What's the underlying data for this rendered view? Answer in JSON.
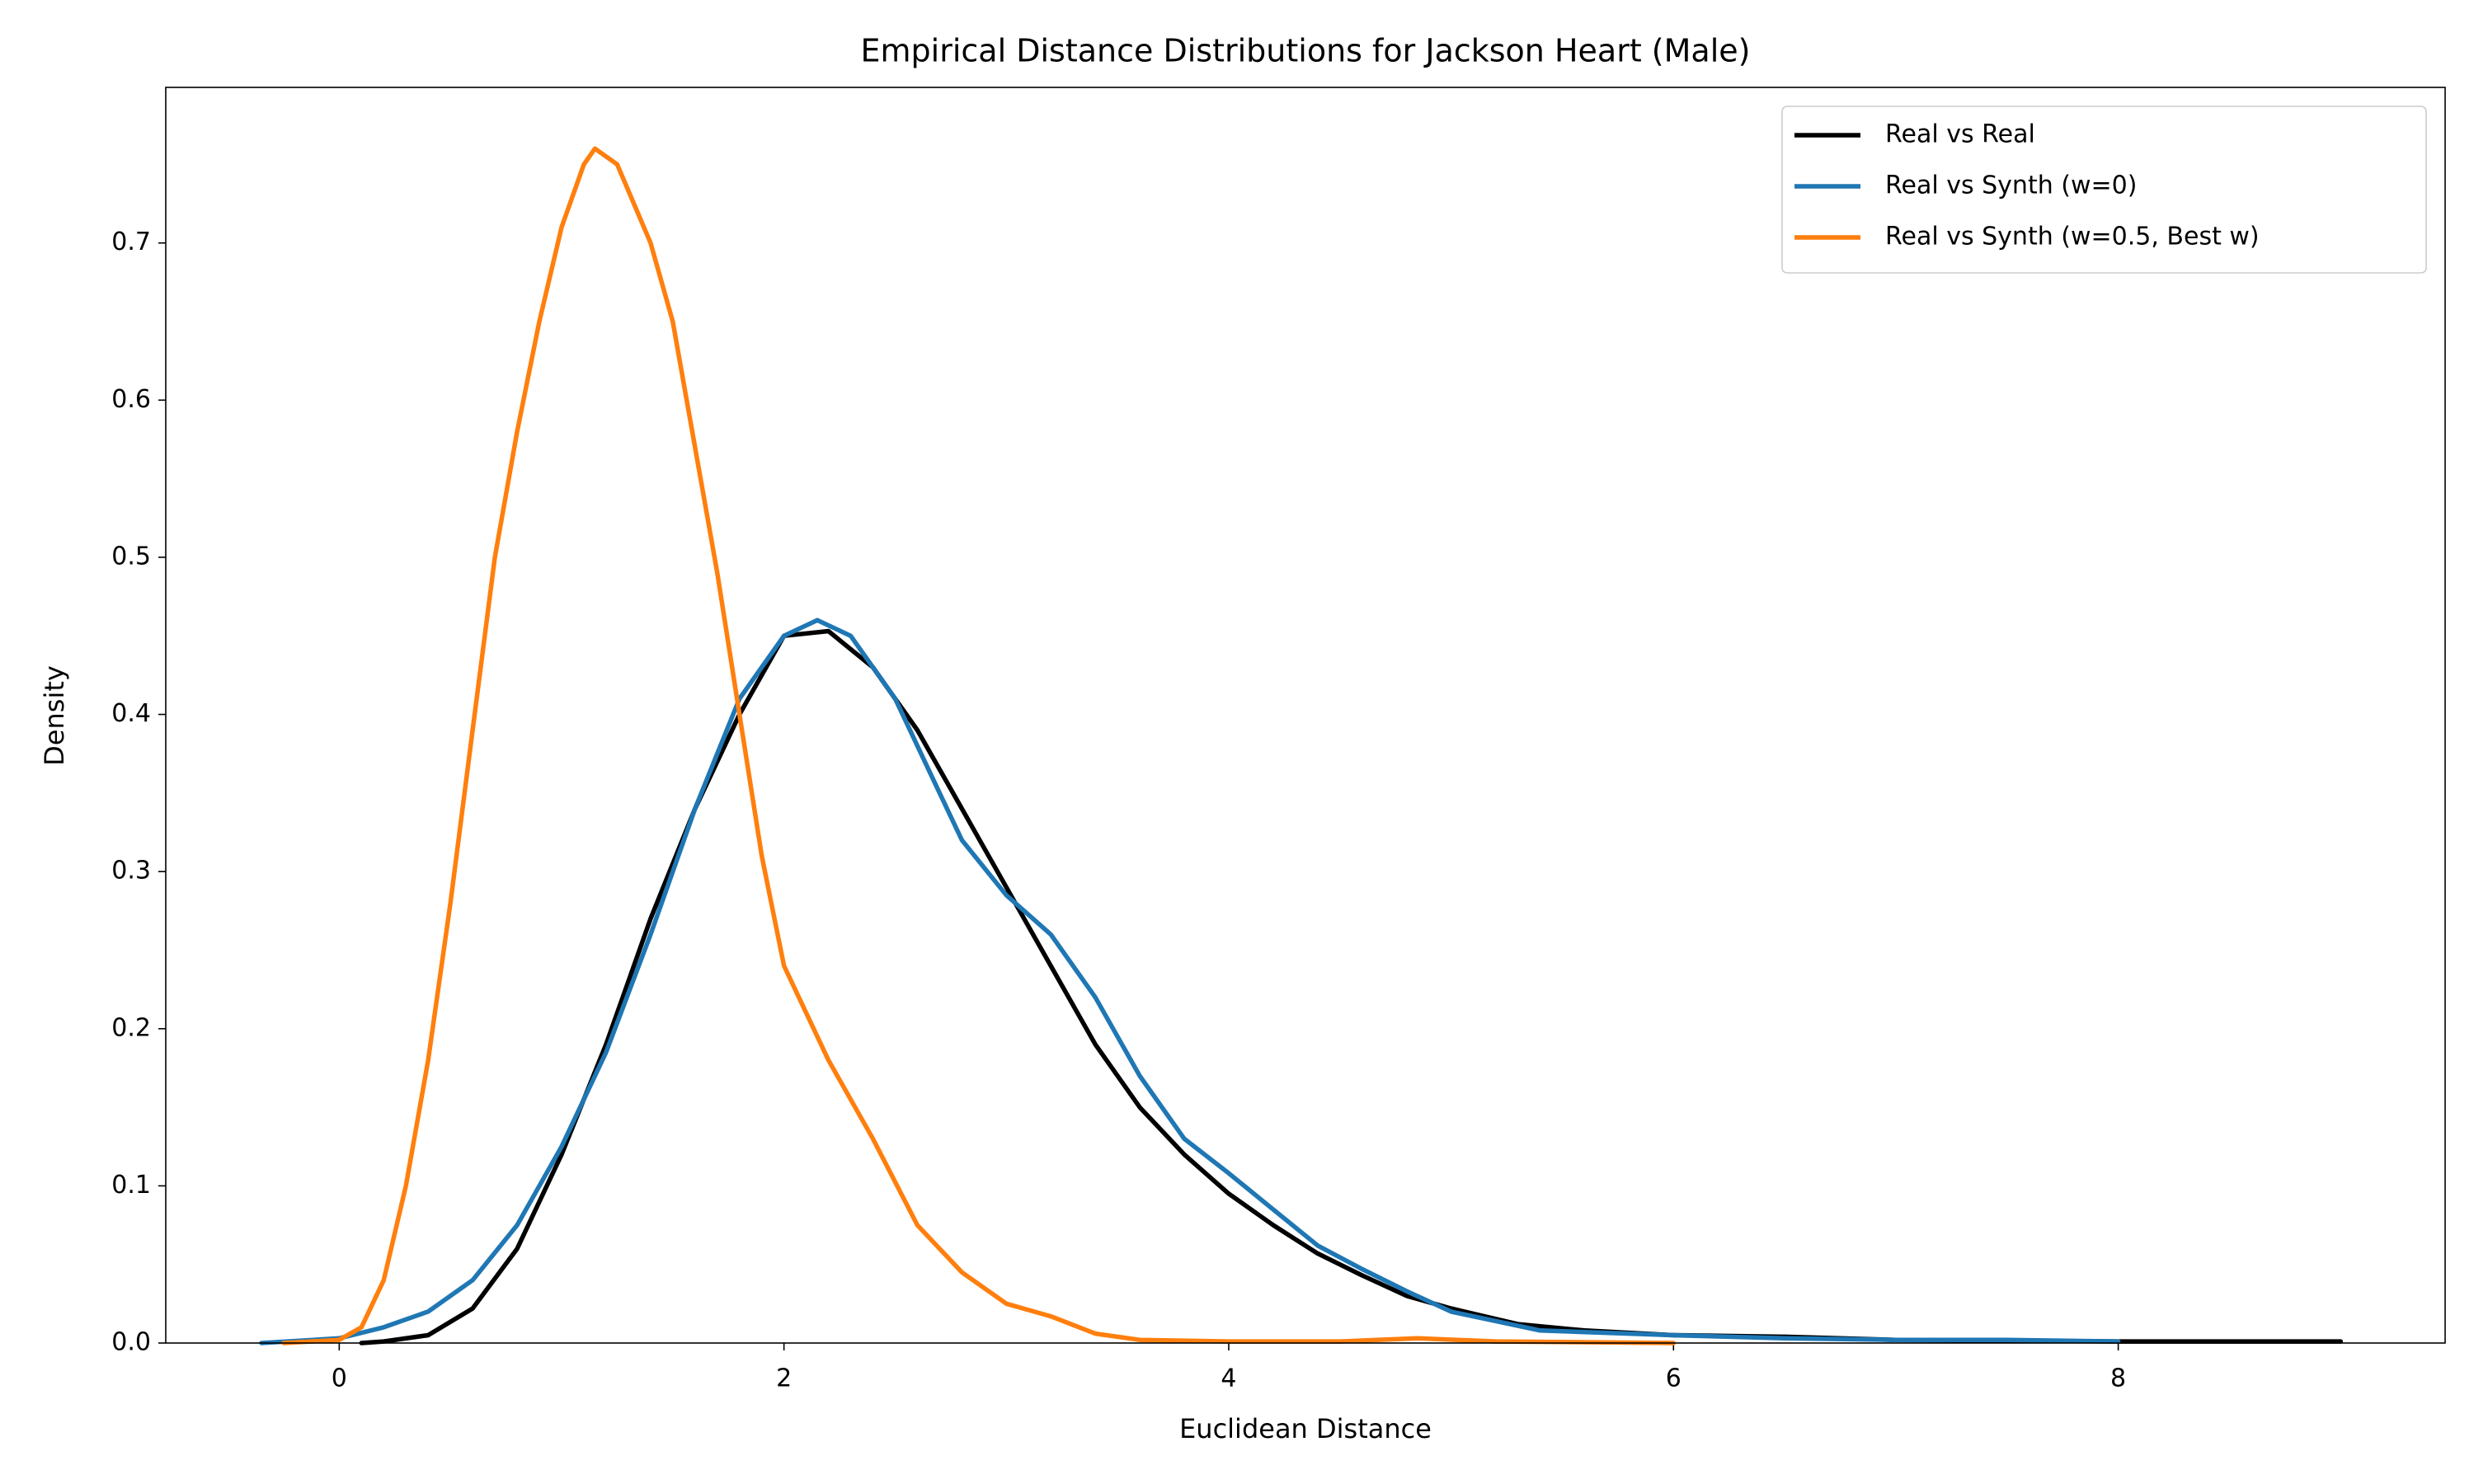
{
  "chart_data": {
    "type": "line",
    "title": "Empirical Distance Distributions for Jackson Heart (Male)",
    "xlabel": "Euclidean Distance",
    "ylabel": "Density",
    "xlim": [
      -0.78,
      9.47
    ],
    "ylim": [
      0,
      0.799
    ],
    "xticks": [
      0,
      2,
      4,
      6,
      8
    ],
    "yticks": [
      {
        "value": 0,
        "label": "0.0"
      },
      0.1,
      0.2,
      0.3,
      0.4,
      0.5,
      0.6,
      0.7
    ],
    "legend": "upper right",
    "grid": false,
    "series": [
      {
        "name": "Real vs Real",
        "color": "#000000",
        "x": [
          0.1,
          0.2,
          0.4,
          0.6,
          0.8,
          1.0,
          1.2,
          1.4,
          1.6,
          1.7,
          1.8,
          2.0,
          2.2,
          2.4,
          2.6,
          2.8,
          3.0,
          3.2,
          3.4,
          3.6,
          3.8,
          4.0,
          4.2,
          4.4,
          4.6,
          4.8,
          5.0,
          5.3,
          5.6,
          6.0,
          6.5,
          7.0,
          8.0,
          9.0
        ],
        "values": [
          0,
          0.001,
          0.005,
          0.022,
          0.06,
          0.12,
          0.19,
          0.27,
          0.34,
          0.37,
          0.4,
          0.45,
          0.453,
          0.43,
          0.39,
          0.34,
          0.29,
          0.24,
          0.19,
          0.15,
          0.12,
          0.095,
          0.075,
          0.057,
          0.043,
          0.03,
          0.022,
          0.012,
          0.008,
          0.005,
          0.004,
          0.002,
          0.001,
          0.001
        ]
      },
      {
        "name": "Real vs Synth (w=0)",
        "color": "#1f77b4",
        "x": [
          -0.35,
          0,
          0.2,
          0.4,
          0.6,
          0.8,
          1.0,
          1.2,
          1.4,
          1.6,
          1.8,
          2.0,
          2.15,
          2.3,
          2.5,
          2.7,
          2.8,
          3.0,
          3.2,
          3.4,
          3.6,
          3.8,
          4.0,
          4.2,
          4.4,
          4.6,
          4.8,
          5.0,
          5.4,
          6.0,
          6.5,
          7.0,
          7.5,
          8.0
        ],
        "values": [
          0,
          0.003,
          0.01,
          0.02,
          0.04,
          0.075,
          0.125,
          0.185,
          0.26,
          0.34,
          0.41,
          0.45,
          0.46,
          0.45,
          0.41,
          0.35,
          0.32,
          0.285,
          0.26,
          0.22,
          0.17,
          0.13,
          0.108,
          0.085,
          0.062,
          0.047,
          0.033,
          0.02,
          0.008,
          0.005,
          0.003,
          0.002,
          0.002,
          0.001
        ]
      },
      {
        "name": "Real vs Synth (w=0.5, Best w)",
        "color": "#ff7f0e",
        "x": [
          -0.25,
          0,
          0.1,
          0.2,
          0.3,
          0.4,
          0.5,
          0.6,
          0.7,
          0.8,
          0.9,
          1.0,
          1.1,
          1.15,
          1.25,
          1.4,
          1.5,
          1.6,
          1.7,
          1.8,
          1.9,
          2.0,
          2.2,
          2.4,
          2.6,
          2.8,
          3.0,
          3.2,
          3.4,
          3.6,
          4.0,
          4.5,
          4.85,
          5.2,
          6.0
        ],
        "values": [
          0,
          0.002,
          0.01,
          0.04,
          0.1,
          0.18,
          0.28,
          0.39,
          0.5,
          0.58,
          0.65,
          0.71,
          0.75,
          0.76,
          0.75,
          0.7,
          0.65,
          0.57,
          0.49,
          0.4,
          0.31,
          0.24,
          0.18,
          0.13,
          0.075,
          0.045,
          0.025,
          0.017,
          0.006,
          0.002,
          0.001,
          0.001,
          0.003,
          0.001,
          0
        ]
      }
    ]
  }
}
